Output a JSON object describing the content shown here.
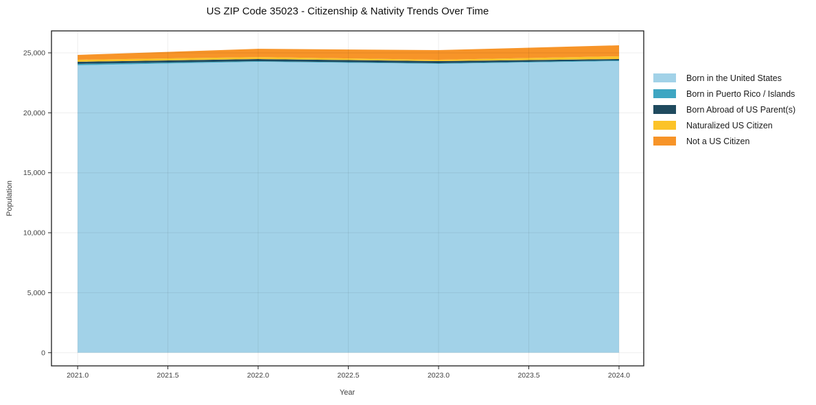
{
  "chart_data": {
    "type": "area",
    "stacked": true,
    "title": "US ZIP Code 35023 - Citizenship & Nativity Trends Over Time",
    "xlabel": "Year",
    "ylabel": "Population",
    "x": [
      2021,
      2022,
      2023,
      2024
    ],
    "series": [
      {
        "name": "Born in the United States",
        "color": "#A2D2E8",
        "values": [
          23970,
          24255,
          24085,
          24315
        ]
      },
      {
        "name": "Born in Puerto Rico / Islands",
        "color": "#3EA6C2",
        "values": [
          115,
          55,
          55,
          55
        ]
      },
      {
        "name": "Born Abroad of US Parent(s)",
        "color": "#1F4A5E",
        "values": [
          170,
          170,
          170,
          115
        ]
      },
      {
        "name": "Naturalized US Citizen",
        "color": "#FCC328",
        "values": [
          170,
          170,
          115,
          230
        ]
      },
      {
        "name": "Not a US Citizen",
        "color": "#F79428",
        "values": [
          400,
          685,
          800,
          915
        ]
      }
    ],
    "xlim": [
      2020.855,
      2024.137
    ],
    "ylim": [
      -1100,
      26830
    ],
    "xticks": [
      2021.0,
      2021.5,
      2022.0,
      2022.5,
      2023.0,
      2023.5,
      2024.0
    ],
    "yticks": [
      0,
      5000,
      10000,
      15000,
      20000,
      25000
    ],
    "x_tick_labels": [
      "2021.0",
      "2021.5",
      "2022.0",
      "2022.5",
      "2023.0",
      "2023.5",
      "2024.0"
    ],
    "y_tick_labels": [
      "0",
      "5,000",
      "10,000",
      "15,000",
      "20,000",
      "25,000"
    ],
    "grid": true,
    "legend_position": "right",
    "spine_color": "#1a1a1a",
    "grid_color_alpha": "rgba(0,0,0,0.07)"
  }
}
